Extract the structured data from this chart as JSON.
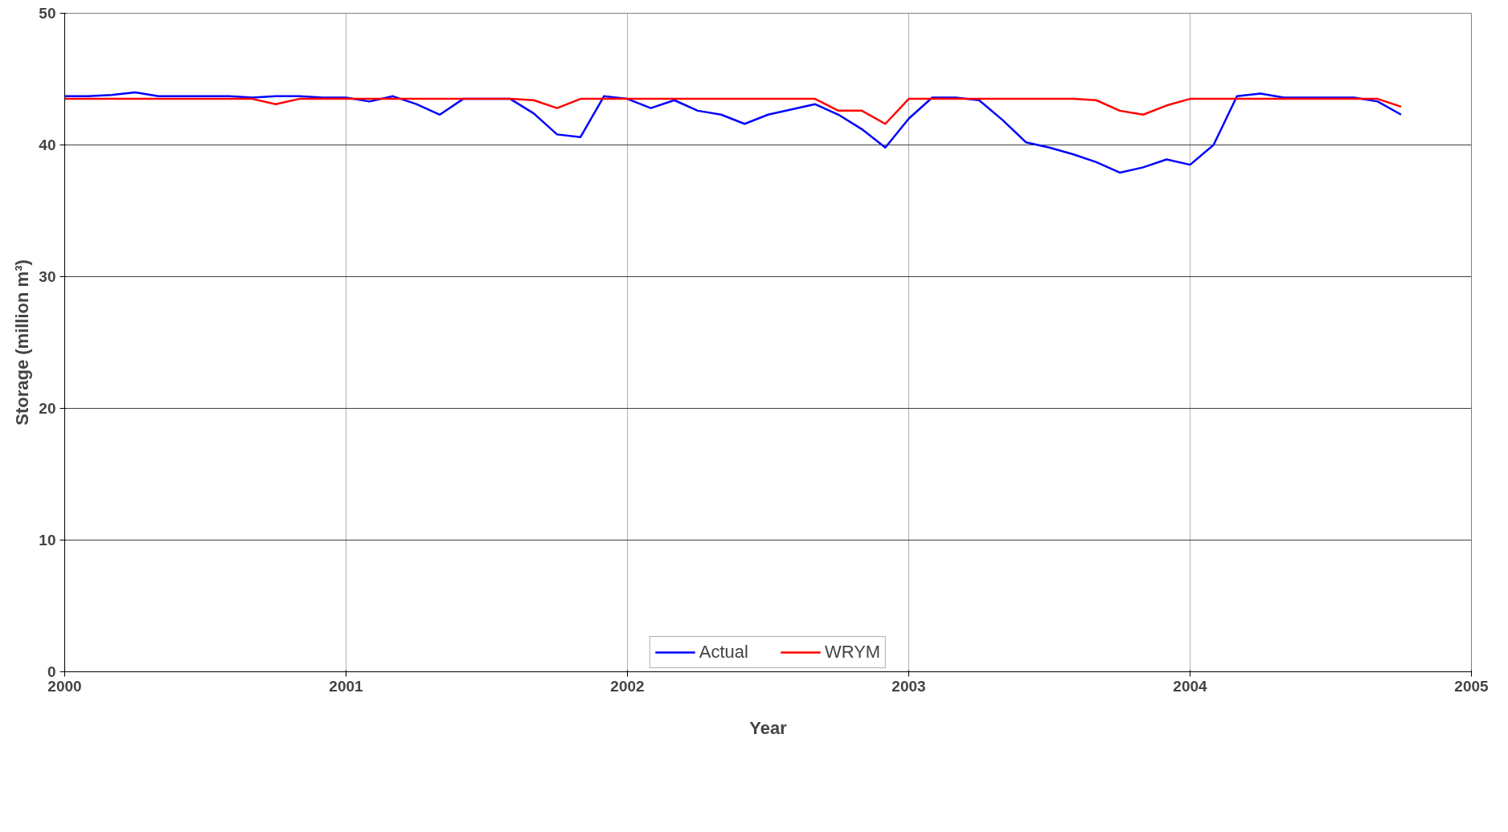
{
  "chart_data": {
    "type": "line",
    "xlabel": "Year",
    "ylabel": "Storage (million m³)",
    "x": [
      2000.0,
      2000.0833,
      2000.1667,
      2000.25,
      2000.3333,
      2000.4167,
      2000.5,
      2000.5833,
      2000.6667,
      2000.75,
      2000.8333,
      2000.9167,
      2001.0,
      2001.0833,
      2001.1667,
      2001.25,
      2001.3333,
      2001.4167,
      2001.5,
      2001.5833,
      2001.6667,
      2001.75,
      2001.8333,
      2001.9167,
      2002.0,
      2002.0833,
      2002.1667,
      2002.25,
      2002.3333,
      2002.4167,
      2002.5,
      2002.5833,
      2002.6667,
      2002.75,
      2002.8333,
      2002.9167,
      2003.0,
      2003.0833,
      2003.1667,
      2003.25,
      2003.3333,
      2003.4167,
      2003.5,
      2003.5833,
      2003.6667,
      2003.75,
      2003.8333,
      2003.9167,
      2004.0,
      2004.0833,
      2004.1667,
      2004.25,
      2004.3333,
      2004.4167,
      2004.5,
      2004.5833,
      2004.6667,
      2004.75
    ],
    "series": [
      {
        "name": "Actual",
        "color": "#0000ff",
        "values": [
          43.7,
          43.7,
          43.8,
          44.0,
          43.7,
          43.7,
          43.7,
          43.7,
          43.6,
          43.7,
          43.7,
          43.6,
          43.6,
          43.3,
          43.7,
          43.1,
          42.3,
          43.5,
          43.5,
          43.5,
          42.4,
          40.8,
          40.6,
          43.7,
          43.5,
          42.8,
          43.4,
          42.6,
          42.3,
          41.6,
          42.3,
          42.7,
          43.1,
          42.3,
          41.2,
          39.8,
          42.0,
          43.6,
          43.6,
          43.4,
          41.9,
          40.2,
          39.8,
          39.3,
          38.7,
          37.9,
          38.3,
          38.9,
          38.5,
          40.0,
          43.7,
          43.9,
          43.6,
          43.6,
          43.6,
          43.6,
          43.3,
          42.3
        ]
      },
      {
        "name": "WRYM",
        "color": "#ff0000",
        "values": [
          43.5,
          43.5,
          43.5,
          43.5,
          43.5,
          43.5,
          43.5,
          43.5,
          43.5,
          43.1,
          43.5,
          43.5,
          43.5,
          43.5,
          43.5,
          43.5,
          43.5,
          43.5,
          43.5,
          43.5,
          43.4,
          42.8,
          43.5,
          43.5,
          43.5,
          43.5,
          43.5,
          43.5,
          43.5,
          43.5,
          43.5,
          43.5,
          43.5,
          42.6,
          42.6,
          41.6,
          43.5,
          43.5,
          43.5,
          43.5,
          43.5,
          43.5,
          43.5,
          43.5,
          43.4,
          42.6,
          42.3,
          43.0,
          43.5,
          43.5,
          43.5,
          43.5,
          43.5,
          43.5,
          43.5,
          43.5,
          43.5,
          42.9
        ]
      }
    ],
    "xlim": [
      2000,
      2005
    ],
    "xticks": [
      2000,
      2001,
      2002,
      2003,
      2004,
      2005
    ],
    "ylim": [
      0,
      50
    ],
    "yticks": [
      0,
      10,
      20,
      30,
      40,
      50
    ],
    "grid": true,
    "legend": "bottom",
    "marker": "none",
    "line_style": "solid"
  }
}
